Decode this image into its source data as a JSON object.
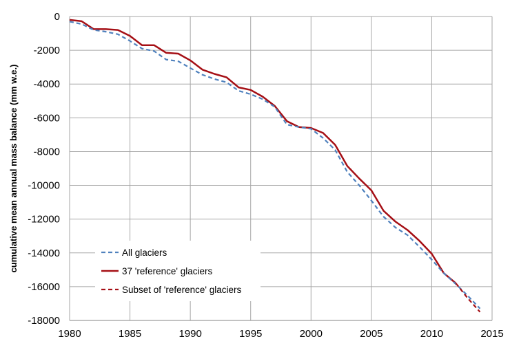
{
  "chart_data": {
    "type": "line",
    "title": "",
    "xlabel": "",
    "ylabel": "cumulative mean annual mass balance (mm w.e.)",
    "xlim": [
      1980,
      2015
    ],
    "ylim": [
      -18000,
      0
    ],
    "xticks": [
      1980,
      1985,
      1990,
      1995,
      2000,
      2005,
      2010,
      2015
    ],
    "yticks": [
      0,
      -2000,
      -4000,
      -6000,
      -8000,
      -10000,
      -12000,
      -14000,
      -16000,
      -18000
    ],
    "grid": true,
    "legend_position": "bottom-left",
    "series": [
      {
        "name": "All glaciers",
        "color": "#4f81bd",
        "style": "dashed",
        "x": [
          1980,
          1981,
          1982,
          1983,
          1984,
          1985,
          1986,
          1987,
          1988,
          1989,
          1990,
          1991,
          1992,
          1993,
          1994,
          1995,
          1996,
          1997,
          1998,
          1999,
          2000,
          2001,
          2002,
          2003,
          2004,
          2005,
          2006,
          2007,
          2008,
          2009,
          2010,
          2011,
          2012,
          2013,
          2014
        ],
        "y": [
          -300,
          -450,
          -800,
          -900,
          -1050,
          -1450,
          -1900,
          -2050,
          -2550,
          -2650,
          -3050,
          -3450,
          -3700,
          -3900,
          -4400,
          -4600,
          -4900,
          -5350,
          -6400,
          -6550,
          -6650,
          -7200,
          -7900,
          -9200,
          -10000,
          -10900,
          -11850,
          -12500,
          -12950,
          -13650,
          -14400,
          -15200,
          -15850,
          -16550,
          -17300
        ]
      },
      {
        "name": "37 'reference' glaciers",
        "color": "#a50f15",
        "style": "solid",
        "x": [
          1980,
          1981,
          1982,
          1983,
          1984,
          1985,
          1986,
          1987,
          1988,
          1989,
          1990,
          1991,
          1992,
          1993,
          1994,
          1995,
          1996,
          1997,
          1998,
          1999,
          2000,
          2001,
          2002,
          2003,
          2004,
          2005,
          2006,
          2007,
          2008,
          2009,
          2010,
          2011,
          2012
        ],
        "y": [
          -200,
          -280,
          -750,
          -750,
          -800,
          -1150,
          -1700,
          -1700,
          -2150,
          -2200,
          -2600,
          -3150,
          -3400,
          -3600,
          -4200,
          -4350,
          -4750,
          -5300,
          -6200,
          -6550,
          -6600,
          -6900,
          -7600,
          -8850,
          -9600,
          -10300,
          -11500,
          -12150,
          -12650,
          -13300,
          -14050,
          -15200,
          -15800
        ]
      },
      {
        "name": "Subset of 'reference' glaciers",
        "color": "#a50f15",
        "style": "dashed",
        "x": [
          2012,
          2013,
          2014
        ],
        "y": [
          -15800,
          -16700,
          -17500
        ]
      }
    ]
  }
}
